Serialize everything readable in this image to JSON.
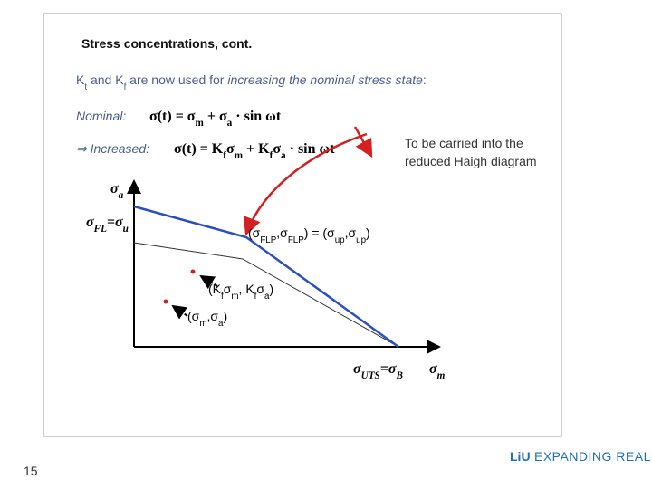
{
  "title": "Stress concentrations, cont.",
  "intro": [
    {
      "t": "K"
    },
    {
      "sub": "t"
    },
    {
      "t": " and K"
    },
    {
      "sub": "f"
    },
    {
      "t": " are now used for "
    },
    {
      "i": "increasing the nominal stress state"
    },
    {
      "t": ":"
    }
  ],
  "nominal": {
    "label": "Nominal:",
    "formula": [
      {
        "t": "σ(t) = σ"
      },
      {
        "sub": "m"
      },
      {
        "t": " + σ"
      },
      {
        "sub": "a"
      },
      {
        "t": " · sin ωt"
      }
    ]
  },
  "increased": {
    "label": "⇒ Increased:",
    "formula": [
      {
        "t": "σ(t) = K"
      },
      {
        "sub": "f"
      },
      {
        "t": "σ"
      },
      {
        "sub": "m"
      },
      {
        "t": " + K"
      },
      {
        "sub": "f"
      },
      {
        "t": "σ"
      },
      {
        "sub": "a"
      },
      {
        "t": " · sin ωt"
      }
    ]
  },
  "note": [
    "To be carried into the",
    "reduced Haigh diagram"
  ],
  "diagram": {
    "y_axis": [
      {
        "t": "σ"
      },
      {
        "sub": "a"
      }
    ],
    "fatigue_limit": [
      {
        "t": "σ"
      },
      {
        "sub": "FL"
      },
      {
        "t": "=σ"
      },
      {
        "sub": "u"
      }
    ],
    "corner": [
      {
        "t": "(σ"
      },
      {
        "sub": "FLP"
      },
      {
        "t": ",σ"
      },
      {
        "sub": "FLP"
      },
      {
        "t": ") = (σ"
      },
      {
        "sub": "up"
      },
      {
        "t": ",σ"
      },
      {
        "sub": "up"
      },
      {
        "t": ")"
      }
    ],
    "scaled_point": [
      {
        "t": "(K"
      },
      {
        "sub": "f"
      },
      {
        "t": "σ"
      },
      {
        "sub": "m"
      },
      {
        "t": ", K"
      },
      {
        "sub": "f"
      },
      {
        "t": "σ"
      },
      {
        "sub": "a"
      },
      {
        "t": ")"
      }
    ],
    "point": [
      {
        "t": "(σ"
      },
      {
        "sub": "m"
      },
      {
        "t": ",σ"
      },
      {
        "sub": "a"
      },
      {
        "t": ")"
      }
    ],
    "uts": [
      {
        "t": "σ"
      },
      {
        "sub": "UTS"
      },
      {
        "t": "=σ"
      },
      {
        "sub": "B"
      }
    ],
    "x_axis": [
      {
        "t": "σ"
      },
      {
        "sub": "m"
      }
    ]
  },
  "footer": {
    "logo": "LiU",
    "tagline": "EXPANDING REALITY",
    "page": "15"
  }
}
